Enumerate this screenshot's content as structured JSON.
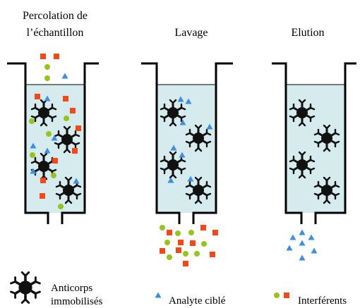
{
  "steps": [
    {
      "title_line1": "Percolation de",
      "title_line2": "l’échantillon"
    },
    {
      "title_line1": "Lavage",
      "title_line2": ""
    },
    {
      "title_line1": "Elution",
      "title_line2": ""
    }
  ],
  "legend": {
    "antibody_line1": "Anticorps",
    "antibody_line2": "immobilisés",
    "analyte": "Analyte ciblé",
    "interferents": "Interférents"
  },
  "colors": {
    "liquid": "#d6ebee",
    "analyte": "#3f8fde",
    "interferent_square": "#f04a1a",
    "interferent_circle": "#96c31f",
    "antibody": "#111111",
    "column_wall": "#000000"
  },
  "icons": [
    "antibody-icon",
    "analyte-triangle-icon",
    "interferent-circle-icon",
    "interferent-square-icon"
  ]
}
